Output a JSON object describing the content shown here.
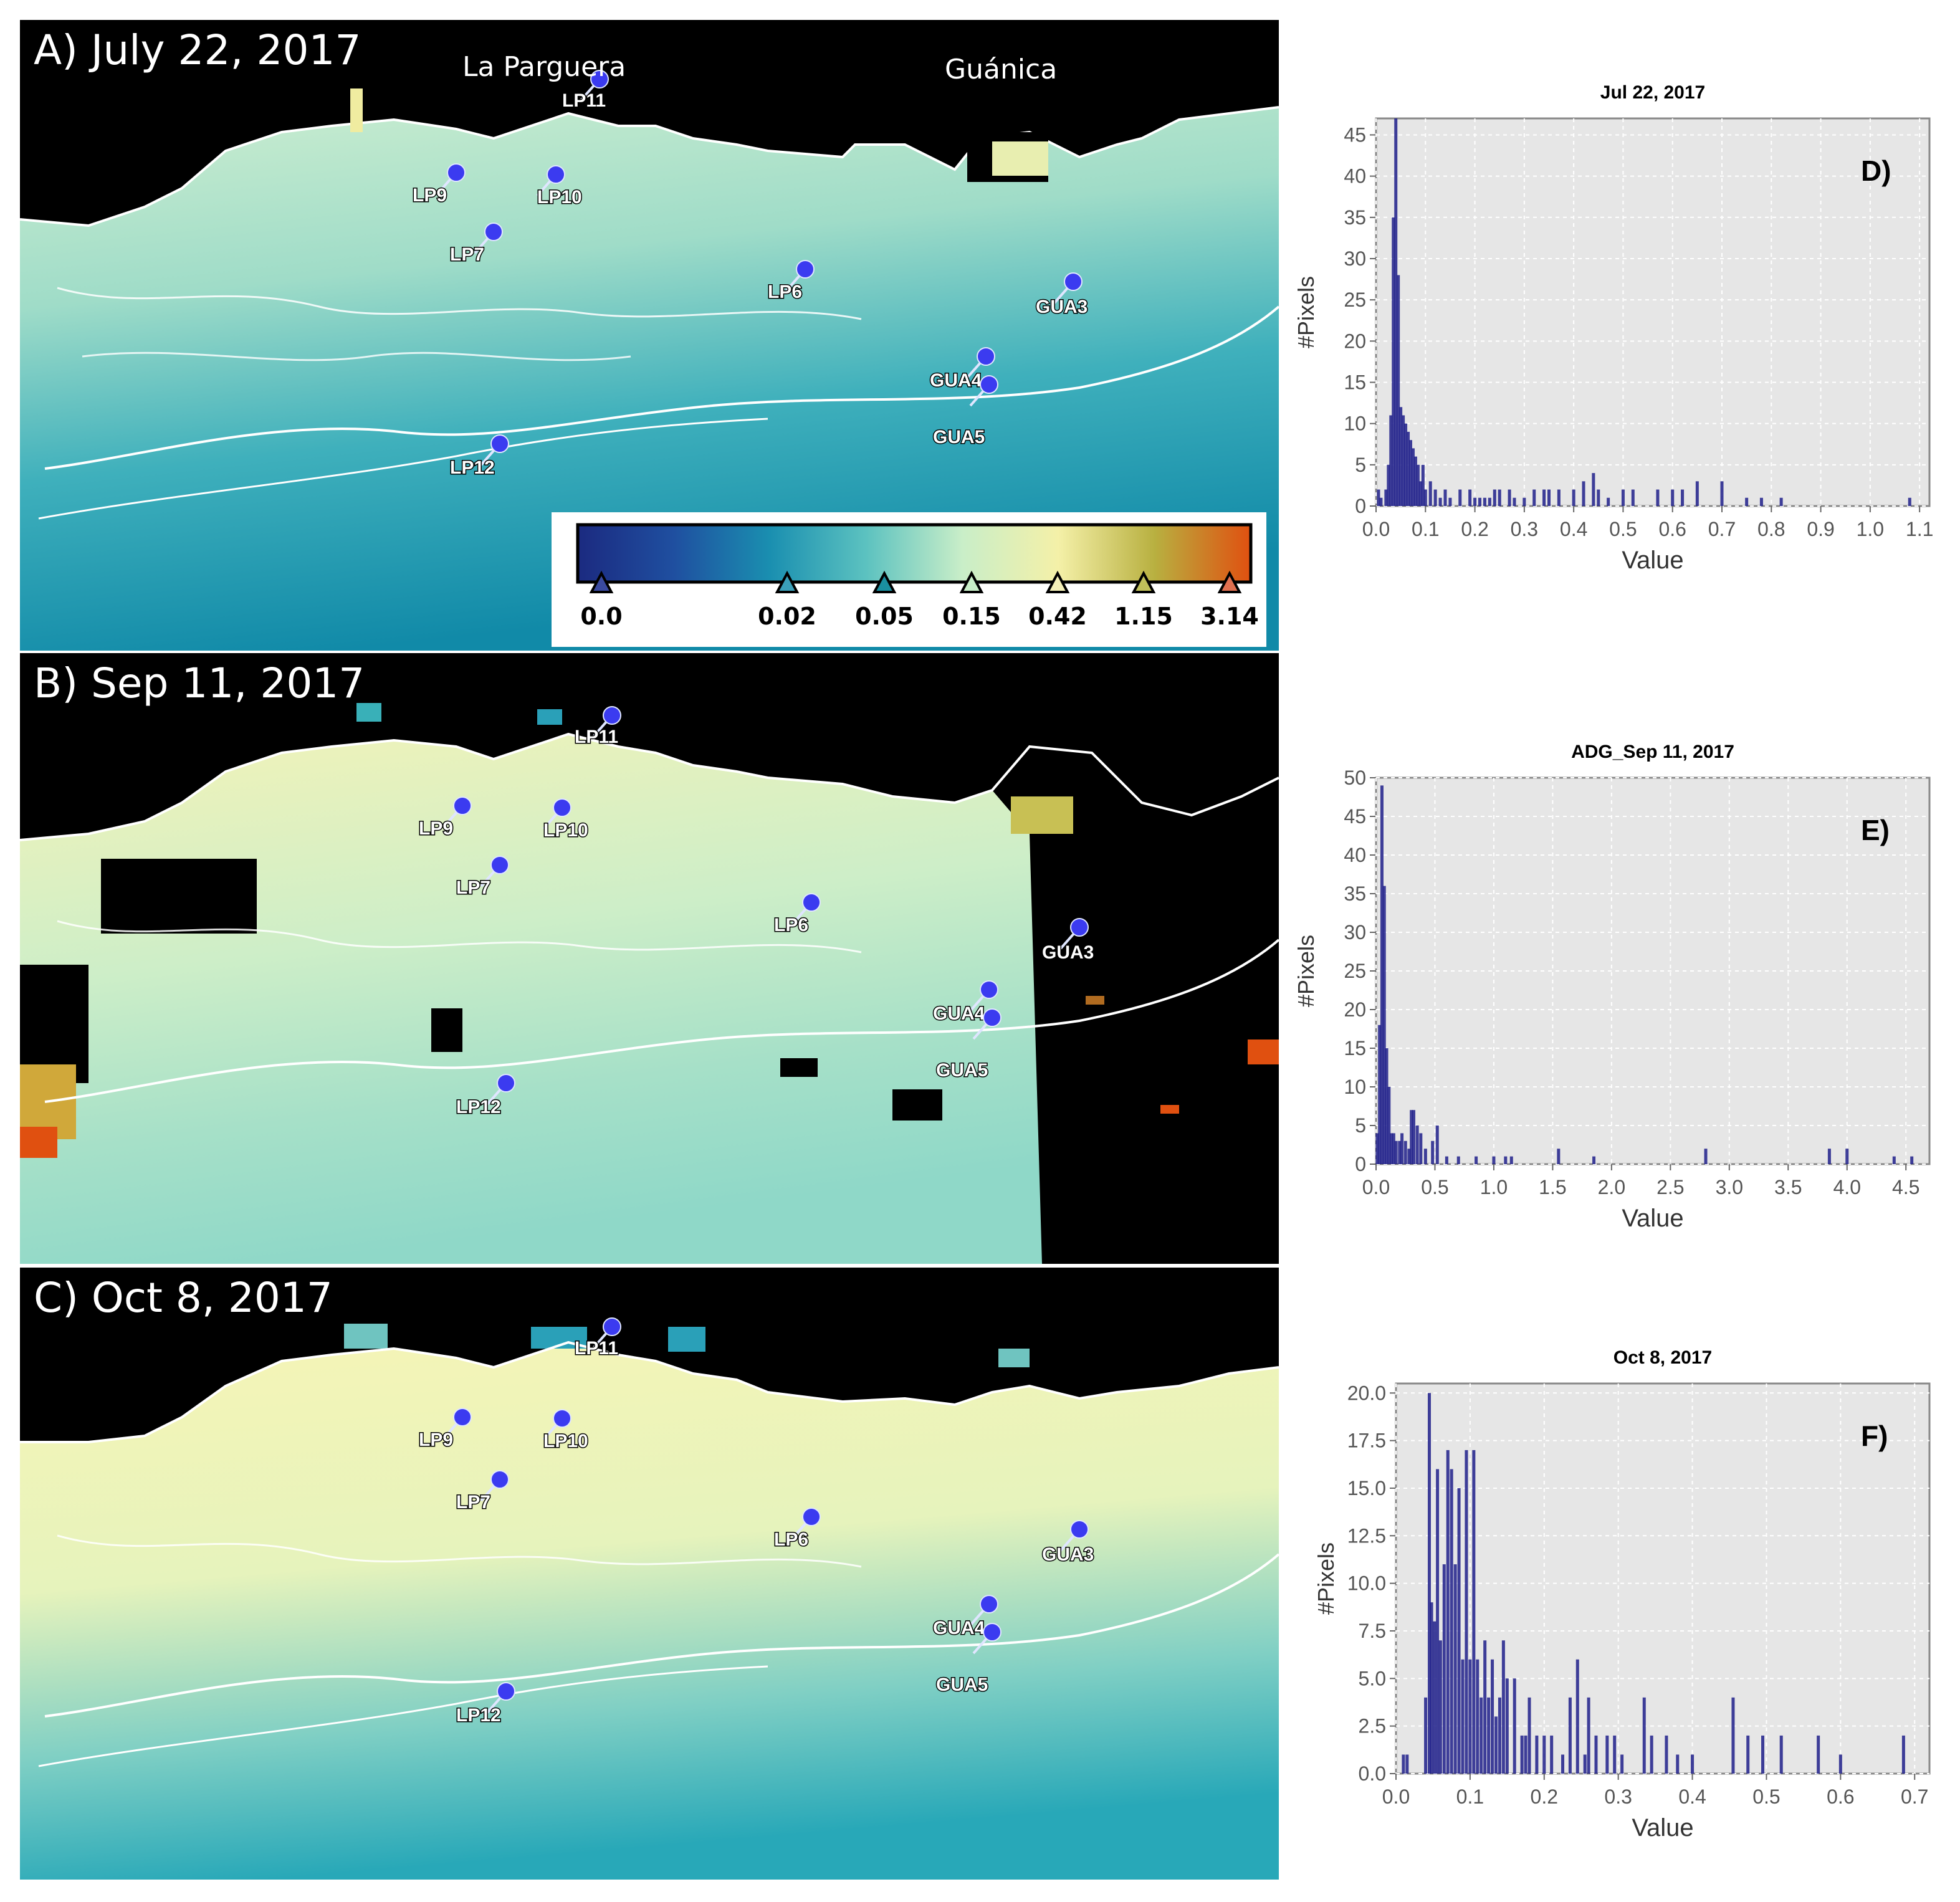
{
  "maps": [
    {
      "id": "A",
      "title": "A) July 22, 2017",
      "places": [
        "La Parguera",
        "Guánica"
      ],
      "stations": [
        "LP11",
        "LP9",
        "LP10",
        "LP7",
        "LP6",
        "GUA3",
        "GUA4",
        "GUA5",
        "LP12"
      ]
    },
    {
      "id": "B",
      "title": "B) Sep 11, 2017",
      "stations": [
        "LP11",
        "LP9",
        "LP10",
        "LP7",
        "LP6",
        "GUA3",
        "GUA4",
        "GUA5",
        "LP12"
      ]
    },
    {
      "id": "C",
      "title": "C) Oct 8, 2017",
      "stations": [
        "LP11",
        "LP9",
        "LP10",
        "LP7",
        "LP6",
        "GUA3",
        "GUA4",
        "GUA5",
        "LP12"
      ]
    }
  ],
  "colorbar": {
    "ticks": [
      "0.0",
      "0.02",
      "0.05",
      "0.15",
      "0.42",
      "1.15",
      "3.14"
    ],
    "colors": [
      "#1b2a80",
      "#1f4fa0",
      "#1a8fb0",
      "#5cc2c0",
      "#c9eec8",
      "#f4f0a8",
      "#b8b040",
      "#e05010"
    ]
  },
  "chart_data": [
    {
      "type": "bar",
      "panel": "D)",
      "title": "Jul 22, 2017",
      "xlabel": "Value",
      "ylabel": "#Pixels",
      "xlim": [
        0,
        1.12
      ],
      "ylim": [
        0,
        47
      ],
      "xticks": [
        "0.0",
        "0.1",
        "0.2",
        "0.3",
        "0.4",
        "0.5",
        "0.6",
        "0.7",
        "0.8",
        "0.9",
        "1.0",
        "1.1"
      ],
      "yticks": [
        "0",
        "5",
        "10",
        "15",
        "20",
        "25",
        "30",
        "35",
        "40",
        "45"
      ],
      "x": [
        0.005,
        0.01,
        0.02,
        0.025,
        0.03,
        0.035,
        0.04,
        0.045,
        0.05,
        0.055,
        0.06,
        0.065,
        0.07,
        0.075,
        0.08,
        0.085,
        0.09,
        0.095,
        0.1,
        0.11,
        0.12,
        0.13,
        0.14,
        0.15,
        0.17,
        0.19,
        0.2,
        0.21,
        0.22,
        0.23,
        0.24,
        0.25,
        0.27,
        0.28,
        0.3,
        0.32,
        0.34,
        0.35,
        0.37,
        0.4,
        0.42,
        0.44,
        0.45,
        0.47,
        0.5,
        0.52,
        0.57,
        0.6,
        0.62,
        0.65,
        0.7,
        0.75,
        0.78,
        0.82,
        1.08
      ],
      "values": [
        2,
        1,
        2,
        5,
        11,
        35,
        47,
        28,
        12,
        11,
        10,
        9,
        8,
        7,
        6,
        5,
        3,
        5,
        2,
        3,
        2,
        1,
        2,
        1,
        2,
        2,
        1,
        1,
        1,
        1,
        2,
        2,
        2,
        1,
        1,
        2,
        2,
        2,
        2,
        2,
        3,
        4,
        2,
        1,
        2,
        2,
        2,
        2,
        2,
        3,
        3,
        1,
        1,
        1,
        1
      ]
    },
    {
      "type": "bar",
      "panel": "E)",
      "title": "ADG_Sep 11, 2017",
      "xlabel": "Value",
      "ylabel": "#Pixels",
      "xlim": [
        0,
        4.7
      ],
      "ylim": [
        0,
        50
      ],
      "xticks": [
        "0.0",
        "0.5",
        "1.0",
        "1.5",
        "2.0",
        "2.5",
        "3.0",
        "3.5",
        "4.0",
        "4.5"
      ],
      "yticks": [
        "0",
        "5",
        "10",
        "15",
        "20",
        "25",
        "30",
        "35",
        "40",
        "45",
        "50"
      ],
      "x": [
        0.01,
        0.03,
        0.05,
        0.07,
        0.09,
        0.11,
        0.13,
        0.15,
        0.17,
        0.2,
        0.22,
        0.25,
        0.28,
        0.3,
        0.32,
        0.35,
        0.38,
        0.42,
        0.48,
        0.52,
        0.6,
        0.7,
        0.85,
        1.0,
        1.1,
        1.15,
        1.55,
        1.85,
        2.8,
        3.85,
        4.0,
        4.4,
        4.55
      ],
      "values": [
        4,
        18,
        49,
        36,
        15,
        10,
        4,
        4,
        3,
        3,
        4,
        3,
        2,
        7,
        7,
        5,
        4,
        2,
        3,
        5,
        1,
        1,
        1,
        1,
        1,
        1,
        2,
        1,
        2,
        2,
        2,
        1,
        1
      ]
    },
    {
      "type": "bar",
      "panel": "F)",
      "title": "Oct 8, 2017",
      "xlabel": "Value",
      "ylabel": "#Pixels",
      "xlim": [
        0,
        0.72
      ],
      "ylim": [
        0,
        20.5
      ],
      "xticks": [
        "0.0",
        "0.1",
        "0.2",
        "0.3",
        "0.4",
        "0.5",
        "0.6",
        "0.7"
      ],
      "yticks": [
        "0.0",
        "2.5",
        "5.0",
        "7.5",
        "10.0",
        "12.5",
        "15.0",
        "17.5",
        "20.0"
      ],
      "x": [
        0.01,
        0.015,
        0.04,
        0.045,
        0.048,
        0.052,
        0.056,
        0.06,
        0.065,
        0.07,
        0.075,
        0.08,
        0.085,
        0.09,
        0.095,
        0.1,
        0.105,
        0.11,
        0.115,
        0.12,
        0.125,
        0.13,
        0.135,
        0.14,
        0.145,
        0.15,
        0.16,
        0.17,
        0.175,
        0.18,
        0.19,
        0.2,
        0.21,
        0.225,
        0.235,
        0.245,
        0.255,
        0.26,
        0.27,
        0.285,
        0.295,
        0.305,
        0.335,
        0.345,
        0.365,
        0.38,
        0.4,
        0.455,
        0.475,
        0.495,
        0.52,
        0.57,
        0.6,
        0.685
      ],
      "values": [
        1,
        1,
        4,
        20,
        9,
        8,
        16,
        7,
        11,
        17,
        16,
        11,
        15,
        6,
        17,
        6,
        17,
        6,
        4,
        7,
        4,
        6,
        3,
        4,
        7,
        5,
        5,
        2,
        2,
        4,
        2,
        2,
        2,
        1,
        4,
        6,
        1,
        4,
        2,
        2,
        2,
        1,
        4,
        2,
        2,
        1,
        1,
        4,
        2,
        2,
        2,
        2,
        1,
        2
      ]
    }
  ]
}
